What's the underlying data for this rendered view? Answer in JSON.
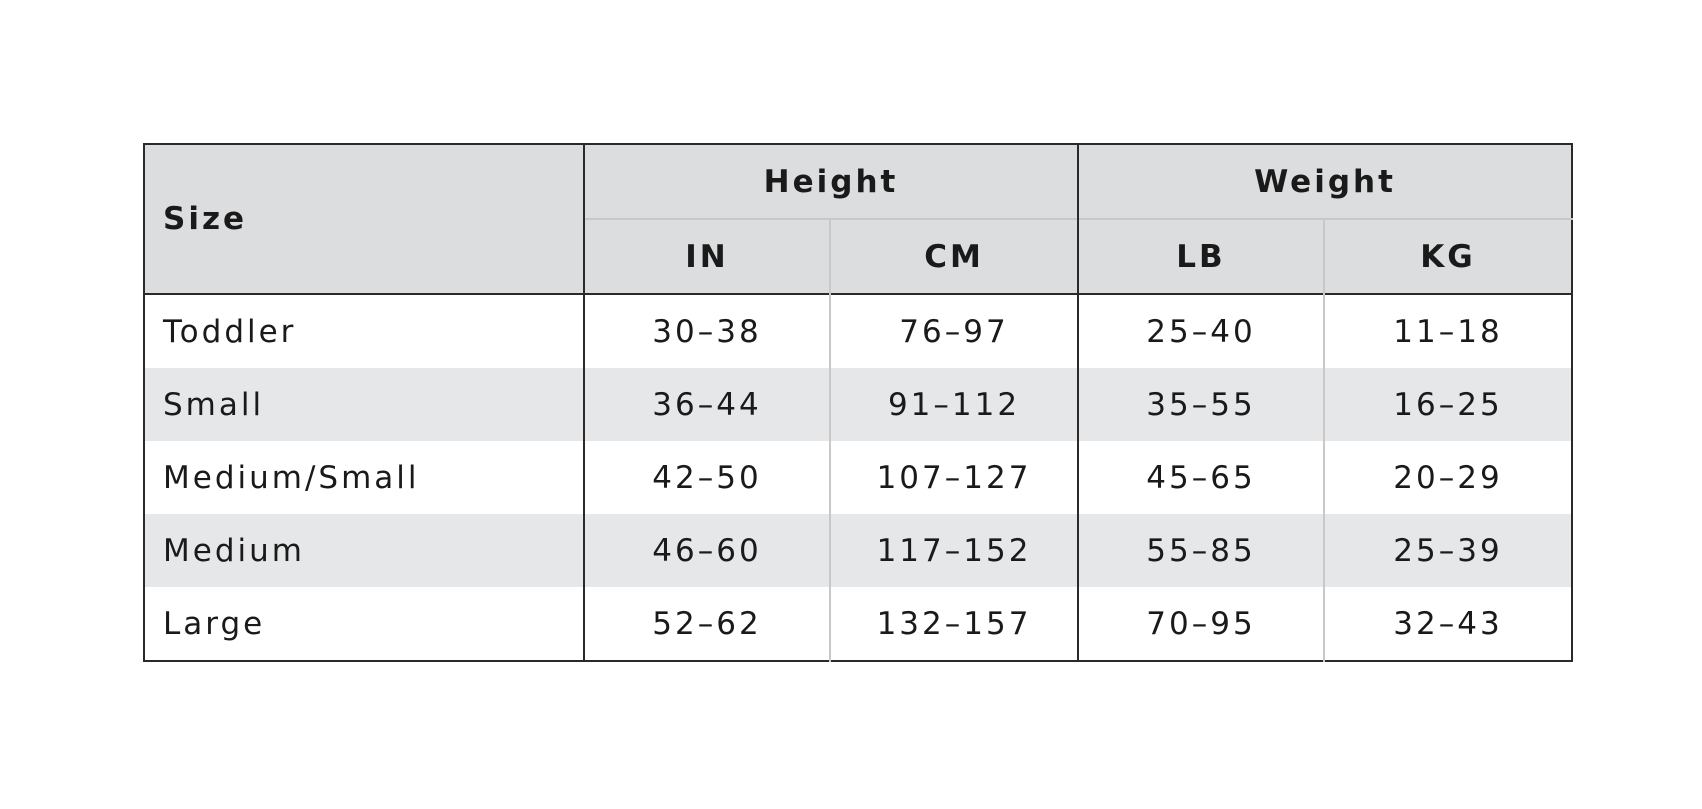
{
  "table": {
    "header": {
      "size": "Size",
      "groups": [
        "Height",
        "Weight"
      ],
      "units": [
        "IN",
        "CM",
        "LB",
        "KG"
      ]
    },
    "rows": [
      [
        "Toddler",
        "30–38",
        "76–97",
        "25–40",
        "11–18"
      ],
      [
        "Small",
        "36–44",
        "91–112",
        "35–55",
        "16–25"
      ],
      [
        "Medium/Small",
        "42–50",
        "107–127",
        "45–65",
        "20–29"
      ],
      [
        "Medium",
        "46–60",
        "117–152",
        "55–85",
        "25–39"
      ],
      [
        "Large",
        "52–62",
        "132–157",
        "70–95",
        "32–43"
      ]
    ]
  }
}
